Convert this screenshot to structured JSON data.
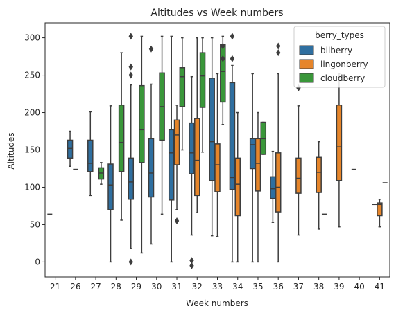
{
  "chart_data": {
    "type": "boxplot",
    "title": "Altitudes vs Week numbers",
    "xlabel": "Week numbers",
    "ylabel": "Altitudes",
    "ylim": [
      -20,
      320
    ],
    "yticks": [
      0,
      50,
      100,
      150,
      200,
      250,
      300
    ],
    "categories": [
      "21",
      "26",
      "27",
      "28",
      "29",
      "30",
      "31",
      "32",
      "33",
      "34",
      "35",
      "36",
      "37",
      "38",
      "39",
      "40",
      "41"
    ],
    "legend": {
      "title": "berry_types",
      "position": "top-right",
      "entries": [
        {
          "name": "bilberry",
          "color": "#2f6fa0"
        },
        {
          "name": "lingonberry",
          "color": "#e6852a"
        },
        {
          "name": "cloudberry",
          "color": "#3a973a"
        }
      ]
    },
    "boxes": [
      {
        "week": "21",
        "hue": "bilberry",
        "wmin": 64,
        "q1": 64,
        "median": 64,
        "q3": 64,
        "wmax": 64,
        "outliers": []
      },
      {
        "week": "26",
        "hue": "bilberry",
        "wmin": 128,
        "q1": 139,
        "median": 152,
        "q3": 163,
        "wmax": 175,
        "outliers": []
      },
      {
        "week": "26",
        "hue": "lingonberry",
        "wmin": 124,
        "q1": 124,
        "median": 124,
        "q3": 124,
        "wmax": 124,
        "outliers": []
      },
      {
        "week": "27",
        "hue": "bilberry",
        "wmin": 89,
        "q1": 121,
        "median": 132,
        "q3": 163,
        "wmax": 201,
        "outliers": []
      },
      {
        "week": "27",
        "hue": "cloudberry",
        "wmin": 104,
        "q1": 111,
        "median": 119,
        "q3": 126,
        "wmax": 133,
        "outliers": []
      },
      {
        "week": "28",
        "hue": "bilberry",
        "wmin": 0,
        "q1": 70,
        "median": 103,
        "q3": 131,
        "wmax": 209,
        "outliers": []
      },
      {
        "week": "28",
        "hue": "cloudberry",
        "wmin": 56,
        "q1": 121,
        "median": 160,
        "q3": 210,
        "wmax": 280,
        "outliers": []
      },
      {
        "week": "29",
        "hue": "bilberry",
        "wmin": 18,
        "q1": 84,
        "median": 107,
        "q3": 139,
        "wmax": 237,
        "outliers": [
          0,
          250,
          261,
          302
        ]
      },
      {
        "week": "29",
        "hue": "cloudberry",
        "wmin": 12,
        "q1": 133,
        "median": 177,
        "q3": 236,
        "wmax": 302,
        "outliers": []
      },
      {
        "week": "30",
        "hue": "bilberry",
        "wmin": 24,
        "q1": 87,
        "median": 119,
        "q3": 165,
        "wmax": 238,
        "outliers": [
          285
        ]
      },
      {
        "week": "30",
        "hue": "cloudberry",
        "wmin": 64,
        "q1": 163,
        "median": 208,
        "q3": 253,
        "wmax": 302,
        "outliers": []
      },
      {
        "week": "31",
        "hue": "bilberry",
        "wmin": 0,
        "q1": 83,
        "median": 146,
        "q3": 177,
        "wmax": 302,
        "outliers": []
      },
      {
        "week": "31",
        "hue": "lingonberry",
        "wmin": 70,
        "q1": 130,
        "median": 170,
        "q3": 190,
        "wmax": 210,
        "outliers": [
          55
        ]
      },
      {
        "week": "31",
        "hue": "cloudberry",
        "wmin": 150,
        "q1": 208,
        "median": 248,
        "q3": 260,
        "wmax": 300,
        "outliers": []
      },
      {
        "week": "32",
        "hue": "bilberry",
        "wmin": 36,
        "q1": 118,
        "median": 146,
        "q3": 186,
        "wmax": 248,
        "outliers": [
          -5,
          2
        ]
      },
      {
        "week": "32",
        "hue": "lingonberry",
        "wmin": 66,
        "q1": 89,
        "median": 136,
        "q3": 192,
        "wmax": 300,
        "outliers": []
      },
      {
        "week": "32",
        "hue": "cloudberry",
        "wmin": 147,
        "q1": 207,
        "median": 249,
        "q3": 280,
        "wmax": 300,
        "outliers": []
      },
      {
        "week": "33",
        "hue": "bilberry",
        "wmin": 35,
        "q1": 109,
        "median": 161,
        "q3": 246,
        "wmax": 300,
        "outliers": []
      },
      {
        "week": "33",
        "hue": "lingonberry",
        "wmin": 34,
        "q1": 94,
        "median": 130,
        "q3": 158,
        "wmax": 252,
        "outliers": []
      },
      {
        "week": "33",
        "hue": "cloudberry",
        "wmin": 184,
        "q1": 214,
        "median": 255,
        "q3": 291,
        "wmax": 302,
        "outliers": [
          272,
          289
        ]
      },
      {
        "week": "34",
        "hue": "bilberry",
        "wmin": 0,
        "q1": 97,
        "median": 113,
        "q3": 240,
        "wmax": 263,
        "outliers": [
          272,
          302
        ]
      },
      {
        "week": "34",
        "hue": "lingonberry",
        "wmin": 0,
        "q1": 62,
        "median": 104,
        "q3": 139,
        "wmax": 200,
        "outliers": []
      },
      {
        "week": "35",
        "hue": "bilberry",
        "wmin": 0,
        "q1": 125,
        "median": 157,
        "q3": 165,
        "wmax": 252,
        "outliers": []
      },
      {
        "week": "35",
        "hue": "lingonberry",
        "wmin": 0,
        "q1": 95,
        "median": 132,
        "q3": 165,
        "wmax": 200,
        "outliers": []
      },
      {
        "week": "35",
        "hue": "cloudberry",
        "wmin": 144,
        "q1": 144,
        "median": 165,
        "q3": 187,
        "wmax": 187,
        "outliers": []
      },
      {
        "week": "36",
        "hue": "bilberry",
        "wmin": 53,
        "q1": 85,
        "median": 98,
        "q3": 114,
        "wmax": 148,
        "outliers": []
      },
      {
        "week": "36",
        "hue": "lingonberry",
        "wmin": 0,
        "q1": 67,
        "median": 100,
        "q3": 146,
        "wmax": 252,
        "outliers": [
          280,
          289
        ]
      },
      {
        "week": "37",
        "hue": "lingonberry",
        "wmin": 36,
        "q1": 92,
        "median": 112,
        "q3": 139,
        "wmax": 209,
        "outliers": [
          233
        ]
      },
      {
        "week": "38",
        "hue": "lingonberry",
        "wmin": 44,
        "q1": 93,
        "median": 120,
        "q3": 140,
        "wmax": 161,
        "outliers": []
      },
      {
        "week": "38",
        "hue": "cloudberry",
        "wmin": 64,
        "q1": 64,
        "median": 64,
        "q3": 64,
        "wmax": 64,
        "outliers": []
      },
      {
        "week": "39",
        "hue": "lingonberry",
        "wmin": 47,
        "q1": 109,
        "median": 154,
        "q3": 210,
        "wmax": 252,
        "outliers": []
      },
      {
        "week": "40",
        "hue": "bilberry",
        "wmin": 124,
        "q1": 124,
        "median": 124,
        "q3": 124,
        "wmax": 124,
        "outliers": []
      },
      {
        "week": "41",
        "hue": "bilberry",
        "wmin": 77,
        "q1": 77,
        "median": 77,
        "q3": 77,
        "wmax": 77,
        "outliers": []
      },
      {
        "week": "41",
        "hue": "lingonberry",
        "wmin": 47,
        "q1": 62,
        "median": 77,
        "q3": 79,
        "wmax": 84,
        "outliers": []
      },
      {
        "week": "41",
        "hue": "cloudberry",
        "wmin": 106,
        "q1": 106,
        "median": 106,
        "q3": 106,
        "wmax": 106,
        "outliers": []
      }
    ]
  }
}
